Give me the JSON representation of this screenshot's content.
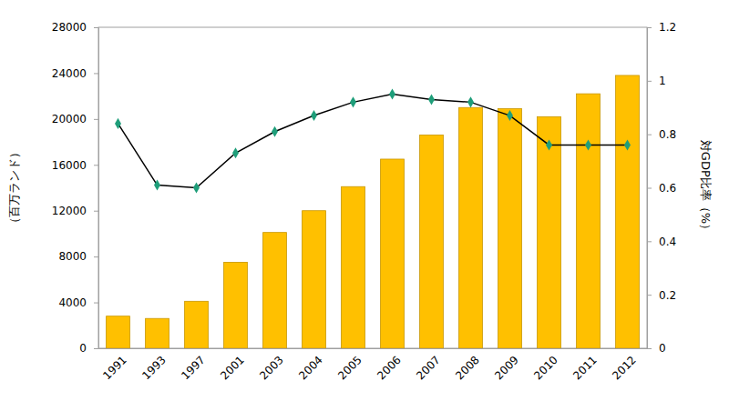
{
  "chart_data": {
    "type": "bar",
    "categories": [
      "1991",
      "1993",
      "1997",
      "2001",
      "2003",
      "2004",
      "2005",
      "2006",
      "2007",
      "2008",
      "2009",
      "2010",
      "2011",
      "2012"
    ],
    "series": [
      {
        "type": "bar",
        "color": "#ffc000",
        "values": [
          2800,
          2600,
          4100,
          7500,
          10100,
          12000,
          14100,
          16500,
          18600,
          21000,
          20900,
          20200,
          22200,
          23800
        ]
      },
      {
        "type": "line",
        "axis": "y2",
        "color": "#000000",
        "marker": "diamond",
        "values": [
          0.84,
          0.61,
          0.6,
          0.73,
          0.81,
          0.87,
          0.92,
          0.95,
          0.93,
          0.92,
          0.87,
          0.76,
          0.76,
          0.76
        ]
      }
    ],
    "ylabel": "（百万ランド）",
    "y2label": "対GDP比率（%）",
    "ylim": [
      0,
      28000
    ],
    "yticks": [
      0,
      4000,
      8000,
      12000,
      16000,
      20000,
      24000,
      28000
    ],
    "y2lim": [
      0,
      1.2
    ],
    "y2ticks": [
      0,
      0.2,
      0.4,
      0.6,
      0.8,
      1,
      1.2
    ],
    "grid": false
  }
}
